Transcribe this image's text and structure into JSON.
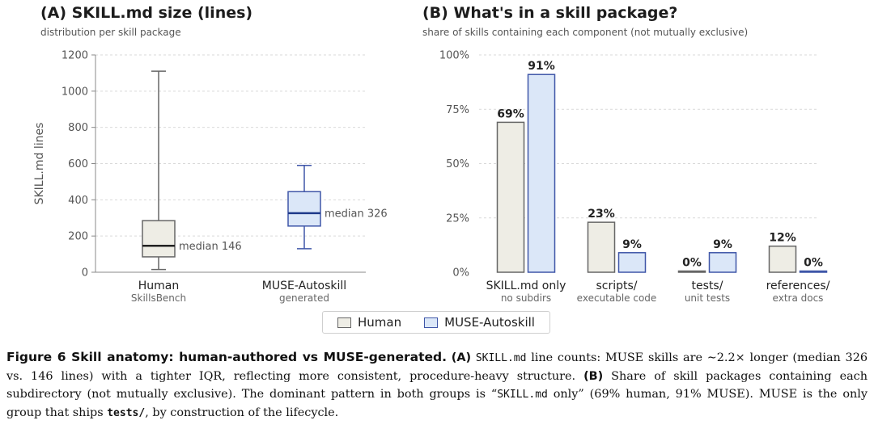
{
  "colors": {
    "human_fill": "#eeede5",
    "human_edge": "#666666",
    "muse_fill": "#dbe7f8",
    "muse_edge": "#3f56a8"
  },
  "panel_a": {
    "title": "(A) SKILL.md size (lines)",
    "subtitle": "distribution per skill package"
  },
  "panel_b": {
    "title": "(B) What's in a skill package?",
    "subtitle": "share of skills containing each component (not mutually exclusive)"
  },
  "legend": {
    "items": [
      "Human",
      "MUSE-Autoskill"
    ]
  },
  "chart_data": [
    {
      "type": "box",
      "title": "(A) SKILL.md size (lines)",
      "ylabel": "SKILL.md lines",
      "ylim": [
        0,
        1200
      ],
      "yticks": [
        0,
        200,
        400,
        600,
        800,
        1000,
        1200
      ],
      "grid": true,
      "groups": [
        {
          "name": "Human",
          "sub": "SkillsBench",
          "series": "Human",
          "whisker_low": 15,
          "q1": 85,
          "median": 146,
          "q3": 285,
          "whisker_high": 1110,
          "median_label": "median 146"
        },
        {
          "name": "MUSE-Autoskill",
          "sub": "generated",
          "series": "MUSE-Autoskill",
          "whisker_low": 130,
          "q1": 255,
          "median": 326,
          "q3": 445,
          "whisker_high": 590,
          "median_label": "median 326"
        }
      ]
    },
    {
      "type": "bar",
      "title": "(B) What's in a skill package?",
      "ylim": [
        0,
        100
      ],
      "yticks": [
        "0%",
        "25%",
        "50%",
        "75%",
        "100%"
      ],
      "grid": true,
      "legend_position": "bottom-center",
      "categories": [
        "SKILL.md only",
        "scripts/",
        "tests/",
        "references/"
      ],
      "category_subs": [
        "no subdirs",
        "executable code",
        "unit tests",
        "extra docs"
      ],
      "series": [
        {
          "name": "Human",
          "values": [
            69,
            23,
            0,
            12
          ],
          "labels": [
            "69%",
            "23%",
            "0%",
            "12%"
          ]
        },
        {
          "name": "MUSE-Autoskill",
          "values": [
            91,
            9,
            9,
            0
          ],
          "labels": [
            "91%",
            "9%",
            "9%",
            "0%"
          ]
        }
      ]
    }
  ],
  "caption": {
    "head": "Figure 6  Skill anatomy: human-authored vs MUSE-generated.",
    "a_tag": "(A)",
    "a_code": "SKILL.md",
    "a_text": " line counts: MUSE skills are ∼2.2× longer (median 326 vs. 146 lines) with a tighter IQR, reflecting more consistent, procedure-heavy structure. ",
    "b_tag": "(B)",
    "b_text": " Share of skill packages containing each subdirectory (not mutually exclusive). The dominant pattern in both groups is “",
    "b_code": "SKILL.md",
    "b_text2": " only” (69% human, 91% MUSE). MUSE is the only group that ships ",
    "b_code2": "tests/",
    "b_text3": ", by construction of the lifecycle."
  }
}
